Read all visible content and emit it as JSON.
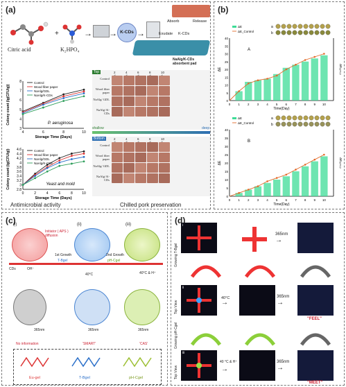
{
  "panels": {
    "a": {
      "tag": "(a)",
      "citric_label": "Citric acid",
      "k2hpo4_label": "K₂HPO₄",
      "kcds_label": "K-CDs",
      "absorb_label": "Absorb",
      "release_label": "Release",
      "exudate_label": "Exudate",
      "kcds2_label": "K-CDs",
      "pad_label": "NaAlg/K-CDs absorbent pad",
      "chart1_title": "P. aeruginosa",
      "chart2_title": "Yeast and mold",
      "ylabel": "Colony count (lg(CFU/g))",
      "xlabel": "Storage Time (Days)",
      "footer_left": "Antimicrobial activity",
      "footer_right": "Chilled pork preservation",
      "top_label": "Top",
      "bottom_label": "Bottom",
      "shallow": "shallow",
      "deep": "deep",
      "days": [
        "0 d",
        "2 d",
        "4 d",
        "6 d",
        "8 d",
        "10 d"
      ],
      "rows": [
        "Control",
        "Wood fiber paper",
        "NaAlg/ GDL",
        "NaAlg/ K-CDs"
      ]
    },
    "b": {
      "tag": "(b)",
      "xlabel": "Time(Day)",
      "A": "A",
      "B": "B",
      "a": "a",
      "b": "b"
    },
    "c": {
      "tag": "(c)",
      "i": "(i)",
      "ii": "(ii)",
      "iii": "(iii)",
      "initiator": "Initiator ( APS ) diffusion",
      "growth1": "1st Growth",
      "tgel": "T-Bgel",
      "growth2": "2nd Growth",
      "phgel": "pH-Cgel",
      "cds": "CDs",
      "oh": "OH⁻",
      "temp1": "40°C",
      "temp2": "40°C & H⁺",
      "nm1": "365nm",
      "nm2": "365nm",
      "nm3": "365nm",
      "no_info": "No information",
      "smart": "'SMART'",
      "cas": "'CAS'",
      "eu": "Eu-gel",
      "t": "T-Bgel",
      "ph": "pH-Cgel"
    },
    "d": {
      "tag": "(d)",
      "i": "i",
      "ii": "ii",
      "iii": "iii",
      "nm1": "365nm",
      "nm2": "365nm",
      "nm3": "365nm",
      "grow1": "Growing T-Bgel",
      "grow2": "Growing pH-Cgel",
      "topview1": "Top View",
      "topview2": "Top View",
      "temp1": "40°C",
      "temp2": "40 °C & H⁺",
      "feel": "\"FEEL\"",
      "meet": "\"MEET\""
    }
  },
  "chart_data": [
    {
      "type": "line",
      "title": "P. aeruginosa",
      "xlabel": "Storage Time (Days)",
      "ylabel": "Colony count (lg(CFU/g))",
      "x": [
        4,
        6,
        8,
        10
      ],
      "ylim": [
        3,
        8
      ],
      "series": [
        {
          "name": "Control",
          "values": [
            4.8,
            5.7,
            6.6,
            7.1
          ]
        },
        {
          "name": "Wood fiber paper",
          "values": [
            4.7,
            5.6,
            6.4,
            6.9
          ]
        },
        {
          "name": "NaAlg/GDL",
          "values": [
            4.6,
            5.5,
            6.2,
            6.7
          ]
        },
        {
          "name": "NaAlg/K-CDs",
          "values": [
            4.5,
            5.2,
            5.9,
            6.4
          ]
        }
      ]
    },
    {
      "type": "line",
      "title": "Yeast and mold",
      "xlabel": "Storage Time (Days)",
      "ylabel": "Colony count (lg(CFU/g))",
      "x": [
        0,
        2,
        4,
        6,
        8,
        10
      ],
      "ylim": [
        2.8,
        4.6
      ],
      "series": [
        {
          "name": "Control",
          "values": [
            3.0,
            3.5,
            3.9,
            4.2,
            4.4,
            4.5
          ]
        },
        {
          "name": "Wood fiber paper",
          "values": [
            3.0,
            3.45,
            3.8,
            4.1,
            4.3,
            4.4
          ]
        },
        {
          "name": "NaAlg/GDL",
          "values": [
            3.0,
            3.4,
            3.75,
            4.0,
            4.15,
            4.25
          ]
        },
        {
          "name": "NaAlg/K-CDs",
          "values": [
            3.0,
            3.3,
            3.6,
            3.85,
            3.95,
            4.05
          ]
        }
      ]
    },
    {
      "type": "bar",
      "xlabel": "Time(Day)",
      "ylabel": "ΔE",
      "ylabel_right": "ΔEₓₒₙₜᵣₒₗ",
      "categories": [
        "1",
        "2",
        "3",
        "4",
        "5",
        "6",
        "7",
        "8",
        "9",
        "10"
      ],
      "ylim": [
        0,
        40
      ],
      "series": [
        {
          "name": "ΔE",
          "values": [
            6,
            12,
            13,
            14,
            17,
            21,
            23,
            25,
            27,
            29
          ]
        },
        {
          "name": "ΔE_Control",
          "values": [
            6,
            11,
            13,
            14,
            16,
            20,
            23,
            26,
            28,
            30
          ]
        }
      ]
    },
    {
      "type": "bar",
      "xlabel": "Time(Day)",
      "ylabel": "ΔE",
      "ylabel_right": "ΔEₓₒₙₜᵣₒₗ",
      "categories": [
        "1",
        "2",
        "3",
        "4",
        "5",
        "6",
        "7",
        "8",
        "9",
        "10"
      ],
      "ylim": [
        0,
        40
      ],
      "series": [
        {
          "name": "ΔE",
          "values": [
            2,
            4,
            6,
            8,
            10,
            12,
            15,
            18,
            21,
            24
          ]
        },
        {
          "name": "ΔE_Control",
          "values": [
            2,
            4,
            6,
            9,
            11,
            13,
            16,
            19,
            22,
            25
          ]
        }
      ]
    }
  ]
}
